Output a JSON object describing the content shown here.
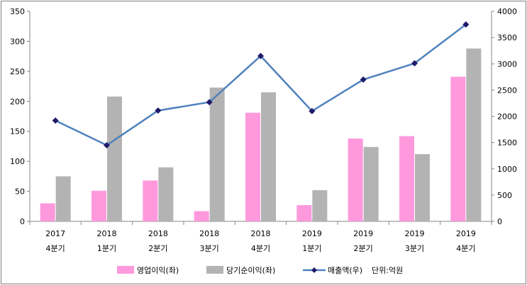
{
  "chart_data": {
    "type": "bar",
    "categories": [
      [
        "2017",
        "4분기"
      ],
      [
        "2018",
        "1분기"
      ],
      [
        "2018",
        "2분기"
      ],
      [
        "2018",
        "3분기"
      ],
      [
        "2018",
        "4분기"
      ],
      [
        "2019",
        "1분기"
      ],
      [
        "2019",
        "2분기"
      ],
      [
        "2019",
        "3분기"
      ],
      [
        "2019",
        "4분기"
      ]
    ],
    "series": [
      {
        "name": "영업이익(좌)",
        "type": "bar",
        "axis": "left",
        "color": "#ff99dd",
        "values": [
          30,
          51,
          68,
          17,
          181,
          27,
          138,
          142,
          241
        ]
      },
      {
        "name": "당기순이익(좌)",
        "type": "bar",
        "axis": "left",
        "color": "#b3b3b3",
        "values": [
          75,
          208,
          90,
          223,
          215,
          52,
          124,
          112,
          288
        ]
      },
      {
        "name": "매출액(우)",
        "type": "line",
        "axis": "right",
        "color": "#4f81bd",
        "marker_color": "#1f1a6b",
        "values": [
          1920,
          1450,
          2110,
          2270,
          3150,
          2100,
          2700,
          3010,
          3750
        ]
      }
    ],
    "y_left": {
      "min": 0,
      "max": 350,
      "ticks": [
        "0",
        "50",
        "100",
        "150",
        "200",
        "250",
        "300",
        "350"
      ]
    },
    "y_right": {
      "min": 0,
      "max": 4000,
      "ticks": [
        "0",
        "500",
        "1000",
        "1500",
        "2000",
        "2500",
        "3000",
        "3500",
        "4000"
      ]
    },
    "unit_note": "단위:억원",
    "legend_position": "bottom",
    "grid": false
  }
}
